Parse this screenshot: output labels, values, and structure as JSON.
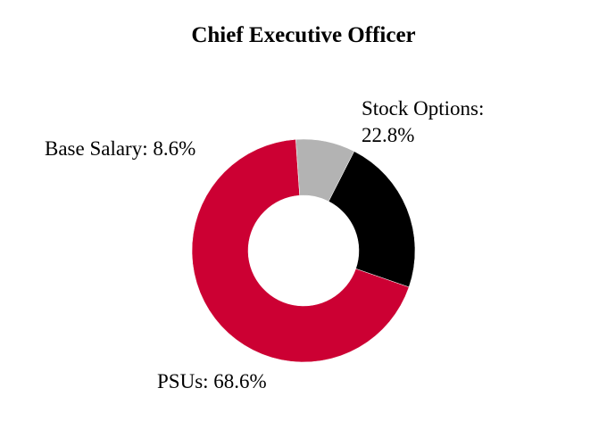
{
  "chart_data": {
    "type": "pie",
    "variant": "donut",
    "title": "Chief Executive Officer",
    "slices": [
      {
        "name": "Stock Options",
        "value": 22.8,
        "label": "Stock Options: 22.8%",
        "color": "#000000"
      },
      {
        "name": "PSUs",
        "value": 68.6,
        "label": "PSUs: 68.6%",
        "color": "#cc0033"
      },
      {
        "name": "Base Salary",
        "value": 8.6,
        "label": "Base Salary: 8.6%",
        "color": "#b3b3b3"
      }
    ],
    "legend": "none"
  }
}
